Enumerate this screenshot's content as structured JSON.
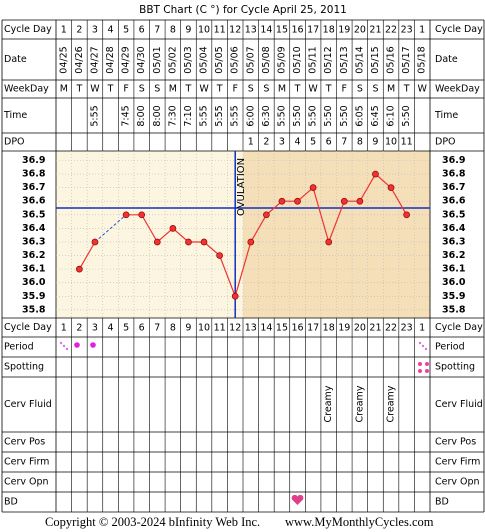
{
  "title": "BBT Chart (C °) for Cycle April 25, 2011",
  "row_labels": {
    "cycle_day": "Cycle Day",
    "date": "Date",
    "weekday": "WeekDay",
    "time": "Time",
    "dpo": "DPO",
    "period": "Period",
    "spotting": "Spotting",
    "cerv_fluid": "Cerv Fluid",
    "cerv_pos": "Cerv Pos",
    "cerv_firm": "Cerv Firm",
    "cerv_opn": "Cerv Opn",
    "bd": "BD"
  },
  "chart_data": {
    "type": "line",
    "categories": [
      "1",
      "2",
      "3",
      "4",
      "5",
      "6",
      "7",
      "8",
      "9",
      "10",
      "11",
      "12",
      "13",
      "14",
      "15",
      "16",
      "17",
      "18",
      "19",
      "20",
      "21",
      "22",
      "23",
      "1"
    ],
    "dates": [
      "04/25",
      "04/26",
      "04/27",
      "04/28",
      "04/29",
      "04/30",
      "05/01",
      "05/02",
      "05/03",
      "05/04",
      "05/05",
      "05/06",
      "05/07",
      "05/08",
      "05/09",
      "05/10",
      "05/11",
      "05/12",
      "05/13",
      "05/14",
      "05/15",
      "05/16",
      "05/17",
      "05/18"
    ],
    "weekdays": [
      "M",
      "T",
      "W",
      "T",
      "F",
      "S",
      "S",
      "M",
      "T",
      "W",
      "T",
      "F",
      "S",
      "S",
      "M",
      "T",
      "W",
      "T",
      "F",
      "S",
      "S",
      "M",
      "T",
      "W"
    ],
    "times": [
      null,
      null,
      "5:55",
      null,
      "7:45",
      "8:00",
      "8:00",
      "7:30",
      "7:10",
      "5:55",
      "5:55",
      "5:55",
      "6:00",
      "6:30",
      "5:50",
      "5:50",
      "5:50",
      "5:50",
      "5:50",
      "6:05",
      "6:45",
      "6:10",
      "5:50",
      null
    ],
    "dpo": [
      null,
      null,
      null,
      null,
      null,
      null,
      null,
      null,
      null,
      null,
      null,
      null,
      1,
      2,
      3,
      4,
      5,
      6,
      7,
      8,
      9,
      10,
      11,
      null
    ],
    "values": [
      null,
      36.1,
      36.3,
      null,
      36.5,
      36.5,
      36.3,
      36.4,
      36.3,
      36.3,
      36.2,
      35.9,
      36.3,
      36.5,
      36.6,
      36.6,
      36.7,
      36.3,
      36.6,
      36.6,
      36.8,
      36.7,
      36.5,
      null
    ],
    "color": "#ee3333",
    "coverline": 36.55,
    "ovulation_label": "OVULATION",
    "cerv_fluid": [
      null,
      null,
      null,
      null,
      null,
      null,
      null,
      null,
      null,
      null,
      null,
      null,
      null,
      null,
      null,
      null,
      null,
      "Creamy",
      null,
      "Creamy",
      null,
      "Creamy",
      null,
      null
    ],
    "ylim": [
      35.74,
      36.97
    ],
    "yticks": [
      36.9,
      36.8,
      36.7,
      36.6,
      36.5,
      36.4,
      36.3,
      36.2,
      36.1,
      {
        "value": 36,
        "label": "36.0"
      },
      35.9,
      35.8
    ],
    "grid": true
  },
  "footer": {
    "copyright": "Copyright © 2003-2024 bInfinity Web Inc.",
    "url": "www.MyMonthlyCycles.com"
  }
}
